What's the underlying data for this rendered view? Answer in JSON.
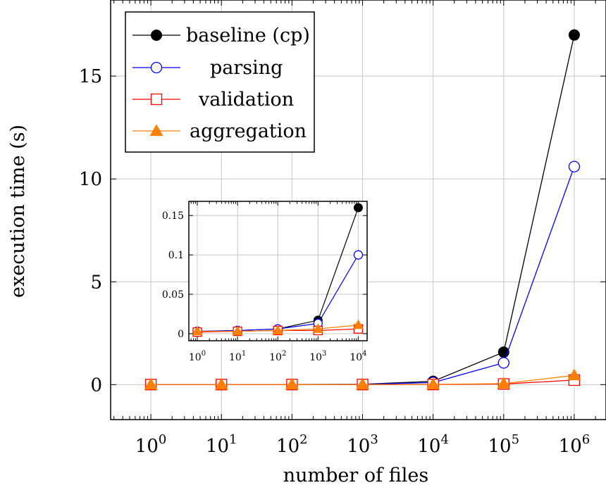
{
  "chart_data": [
    {
      "type": "line",
      "xlabel": "number of files",
      "ylabel": "execution time (s)",
      "x_scale": "log10",
      "x": [
        1,
        10,
        100,
        1000,
        10000,
        100000,
        1000000
      ],
      "x_tick_labels": [
        {
          "base": "10",
          "exp": "0"
        },
        {
          "base": "10",
          "exp": "1"
        },
        {
          "base": "10",
          "exp": "2"
        },
        {
          "base": "10",
          "exp": "3"
        },
        {
          "base": "10",
          "exp": "4"
        },
        {
          "base": "10",
          "exp": "5"
        },
        {
          "base": "10",
          "exp": "6"
        }
      ],
      "ylim": [
        -1.7,
        18.7
      ],
      "y_ticks": [
        0,
        5,
        10,
        15
      ],
      "y_tick_labels": [
        "0",
        "5",
        "10",
        "15"
      ],
      "grid": true,
      "legend_position": "top-left",
      "series": [
        {
          "name": "baseline (cp)",
          "color": "#000000",
          "marker": "filled-circle",
          "values": [
            0.003,
            0.004,
            0.006,
            0.017,
            0.16,
            1.58,
            17.0
          ]
        },
        {
          "name": "parsing",
          "color": "#0000ff",
          "marker": "open-circle",
          "values": [
            0.003,
            0.004,
            0.006,
            0.013,
            0.1,
            1.06,
            10.6
          ]
        },
        {
          "name": "validation",
          "color": "#ff0000",
          "marker": "open-square",
          "values": [
            0.002,
            0.003,
            0.004,
            0.004,
            0.006,
            0.03,
            0.22
          ]
        },
        {
          "name": "aggregation",
          "color": "#ff8000",
          "marker": "filled-triangle",
          "values": [
            0.003,
            0.003,
            0.004,
            0.006,
            0.011,
            0.05,
            0.45
          ]
        }
      ]
    },
    {
      "type": "line",
      "role": "inset",
      "x_scale": "log10",
      "x": [
        1,
        10,
        100,
        1000,
        10000
      ],
      "x_tick_labels": [
        {
          "base": "10",
          "exp": "0"
        },
        {
          "base": "10",
          "exp": "1"
        },
        {
          "base": "10",
          "exp": "2"
        },
        {
          "base": "10",
          "exp": "3"
        },
        {
          "base": "10",
          "exp": "4"
        }
      ],
      "ylim": [
        -0.009,
        0.168
      ],
      "y_ticks": [
        0,
        0.05,
        0.1,
        0.15
      ],
      "y_tick_labels": [
        "0",
        "0.05",
        "0.1",
        "0.15"
      ],
      "grid": true,
      "series": [
        {
          "name": "baseline (cp)",
          "color": "#000000",
          "marker": "filled-circle",
          "values": [
            0.003,
            0.004,
            0.006,
            0.017,
            0.16
          ]
        },
        {
          "name": "parsing",
          "color": "#0000ff",
          "marker": "open-circle",
          "values": [
            0.003,
            0.004,
            0.006,
            0.013,
            0.1
          ]
        },
        {
          "name": "validation",
          "color": "#ff0000",
          "marker": "open-square",
          "values": [
            0.002,
            0.003,
            0.004,
            0.004,
            0.006
          ]
        },
        {
          "name": "aggregation",
          "color": "#ff8000",
          "marker": "filled-triangle",
          "values": [
            0.003,
            0.003,
            0.004,
            0.006,
            0.011
          ]
        }
      ]
    }
  ]
}
